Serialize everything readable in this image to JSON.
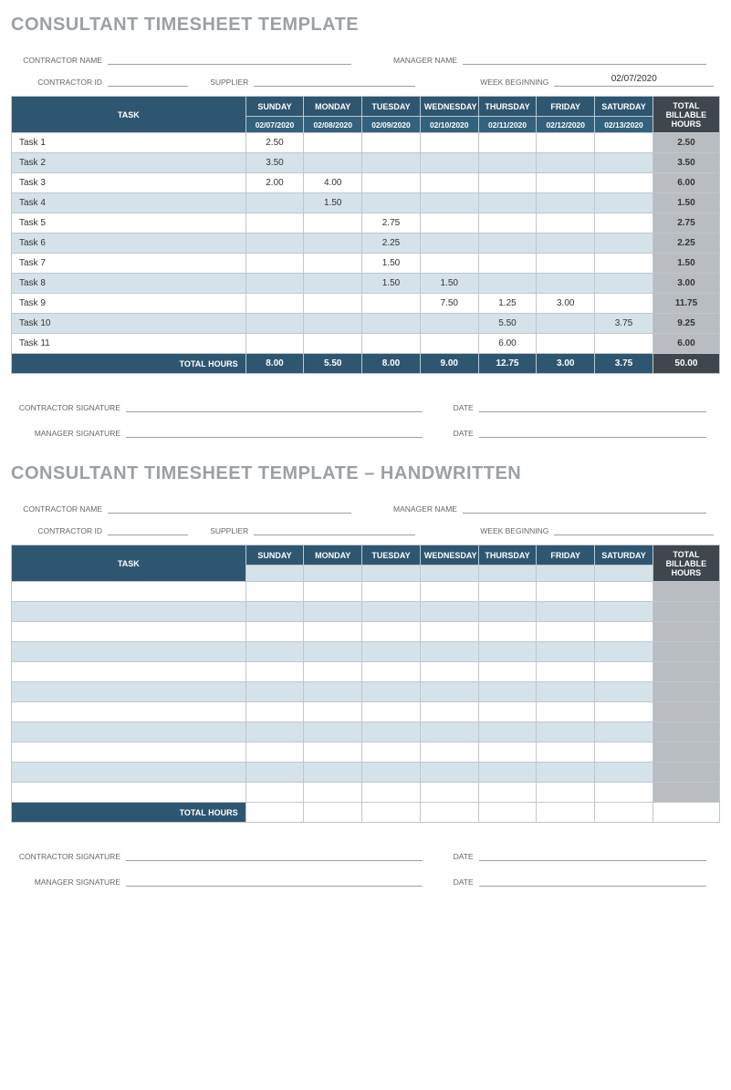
{
  "sheet1": {
    "title": "CONSULTANT TIMESHEET TEMPLATE",
    "labels": {
      "contractor_name": "CONTRACTOR NAME",
      "manager_name": "MANAGER NAME",
      "contractor_id": "CONTRACTOR ID",
      "supplier": "SUPPLIER",
      "week_beginning": "WEEK BEGINNING",
      "task_header": "TASK",
      "total_hours_header": "TOTAL BILLABLE HOURS",
      "total_hours_row": "TOTAL HOURS",
      "contractor_signature": "CONTRACTOR SIGNATURE",
      "manager_signature": "MANAGER SIGNATURE",
      "date": "DATE"
    },
    "week_beginning_value": "02/07/2020",
    "days": [
      "SUNDAY",
      "MONDAY",
      "TUESDAY",
      "WEDNESDAY",
      "THURSDAY",
      "FRIDAY",
      "SATURDAY"
    ],
    "dates": [
      "02/07/2020",
      "02/08/2020",
      "02/09/2020",
      "02/10/2020",
      "02/11/2020",
      "02/12/2020",
      "02/13/2020"
    ],
    "rows": [
      {
        "task": "Task 1",
        "cells": [
          "2.50",
          "",
          "",
          "",
          "",
          "",
          ""
        ],
        "total": "2.50"
      },
      {
        "task": "Task 2",
        "cells": [
          "3.50",
          "",
          "",
          "",
          "",
          "",
          ""
        ],
        "total": "3.50"
      },
      {
        "task": "Task 3",
        "cells": [
          "2.00",
          "4.00",
          "",
          "",
          "",
          "",
          ""
        ],
        "total": "6.00"
      },
      {
        "task": "Task 4",
        "cells": [
          "",
          "1.50",
          "",
          "",
          "",
          "",
          ""
        ],
        "total": "1.50"
      },
      {
        "task": "Task 5",
        "cells": [
          "",
          "",
          "2.75",
          "",
          "",
          "",
          ""
        ],
        "total": "2.75"
      },
      {
        "task": "Task 6",
        "cells": [
          "",
          "",
          "2.25",
          "",
          "",
          "",
          ""
        ],
        "total": "2.25"
      },
      {
        "task": "Task 7",
        "cells": [
          "",
          "",
          "1.50",
          "",
          "",
          "",
          ""
        ],
        "total": "1.50"
      },
      {
        "task": "Task 8",
        "cells": [
          "",
          "",
          "1.50",
          "1.50",
          "",
          "",
          ""
        ],
        "total": "3.00"
      },
      {
        "task": "Task 9",
        "cells": [
          "",
          "",
          "",
          "7.50",
          "1.25",
          "3.00",
          ""
        ],
        "total": "11.75"
      },
      {
        "task": "Task 10",
        "cells": [
          "",
          "",
          "",
          "",
          "5.50",
          "",
          "3.75"
        ],
        "total": "9.25"
      },
      {
        "task": "Task 11",
        "cells": [
          "",
          "",
          "",
          "",
          "6.00",
          "",
          ""
        ],
        "total": "6.00"
      }
    ],
    "totals": [
      "8.00",
      "5.50",
      "8.00",
      "9.00",
      "12.75",
      "3.00",
      "3.75"
    ],
    "grand_total": "50.00",
    "colors": {
      "header_bg": "#2e5670",
      "subheader_bg": "#33627e",
      "total_head_bg": "#3f464d",
      "alt_row_bg": "#d5e2e9",
      "total_col_bg": "#b9bdc1",
      "title_color": "#9aa0a6",
      "border": "#bfc7cc"
    }
  },
  "sheet2": {
    "title": "CONSULTANT TIMESHEET TEMPLATE – HANDWRITTEN",
    "labels": {
      "contractor_name": "CONTRACTOR NAME",
      "manager_name": "MANAGER NAME",
      "contractor_id": "CONTRACTOR ID",
      "supplier": "SUPPLIER",
      "week_beginning": "WEEK BEGINNING",
      "task_header": "TASK",
      "total_hours_header": "TOTAL BILLABLE HOURS",
      "total_hours_row": "TOTAL HOURS",
      "contractor_signature": "CONTRACTOR SIGNATURE",
      "manager_signature": "MANAGER SIGNATURE",
      "date": "DATE"
    },
    "days": [
      "SUNDAY",
      "MONDAY",
      "TUESDAY",
      "WEDNESDAY",
      "THURSDAY",
      "FRIDAY",
      "SATURDAY"
    ],
    "row_count": 11,
    "colors": {
      "header_bg": "#2e5670",
      "subheader_bg": "#d5e2e9",
      "total_head_bg": "#3f464d",
      "alt_row_bg": "#d5e2e9",
      "total_col_bg": "#b9bdc1"
    }
  }
}
